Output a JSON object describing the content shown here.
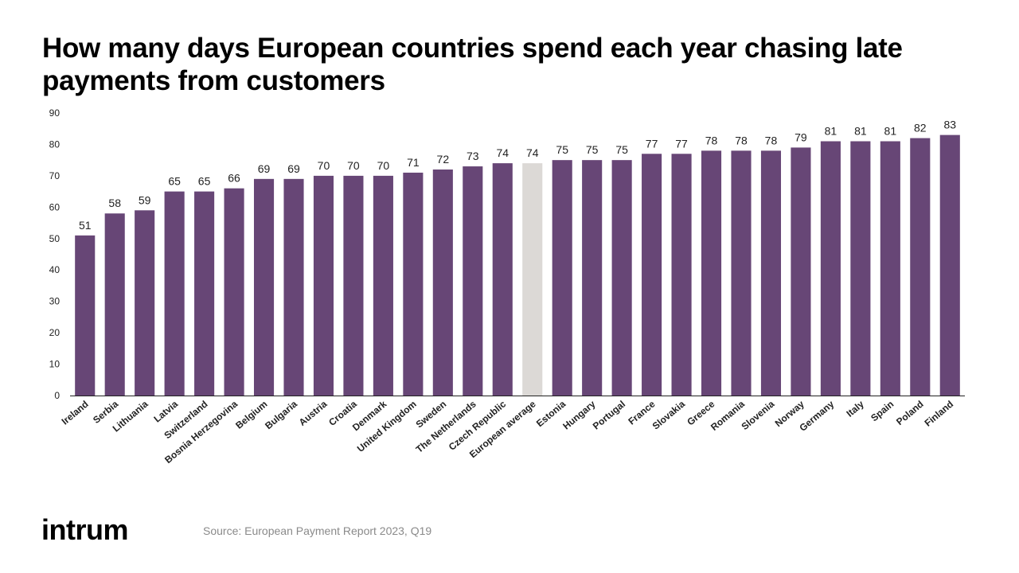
{
  "page": {
    "title": "How many days European countries spend each year chasing late payments from customers",
    "brand": "intrum",
    "source": "Source: European Payment Report 2023, Q19"
  },
  "colors": {
    "bar": "#674676",
    "highlight": "#dcd9d6",
    "axis": "#222222",
    "text": "#222222"
  },
  "chart_data": {
    "type": "bar",
    "title": "How many days European countries spend each year chasing late payments from customers",
    "xlabel": "",
    "ylabel": "",
    "ylim": [
      0,
      90
    ],
    "yticks": [
      0,
      10,
      20,
      30,
      40,
      50,
      60,
      70,
      80,
      90
    ],
    "grid": false,
    "highlight_category": "European average",
    "categories": [
      "Ireland",
      "Serbia",
      "Lithuania",
      "Latvia",
      "Switzerland",
      "Bosnia Herzegovina",
      "Belgium",
      "Bulgaria",
      "Austria",
      "Croatia",
      "Denmark",
      "United Kingdom",
      "Sweden",
      "The Netherlands",
      "Czech Republic",
      "European average",
      "Estonia",
      "Hungary",
      "Portugal",
      "France",
      "Slovakia",
      "Greece",
      "Romania",
      "Slovenia",
      "Norway",
      "Germany",
      "Italy",
      "Spain",
      "Poland",
      "Finland"
    ],
    "values": [
      51,
      58,
      59,
      65,
      65,
      66,
      69,
      69,
      70,
      70,
      70,
      71,
      72,
      73,
      74,
      74,
      75,
      75,
      75,
      77,
      77,
      78,
      78,
      78,
      79,
      81,
      81,
      81,
      82,
      83
    ]
  }
}
